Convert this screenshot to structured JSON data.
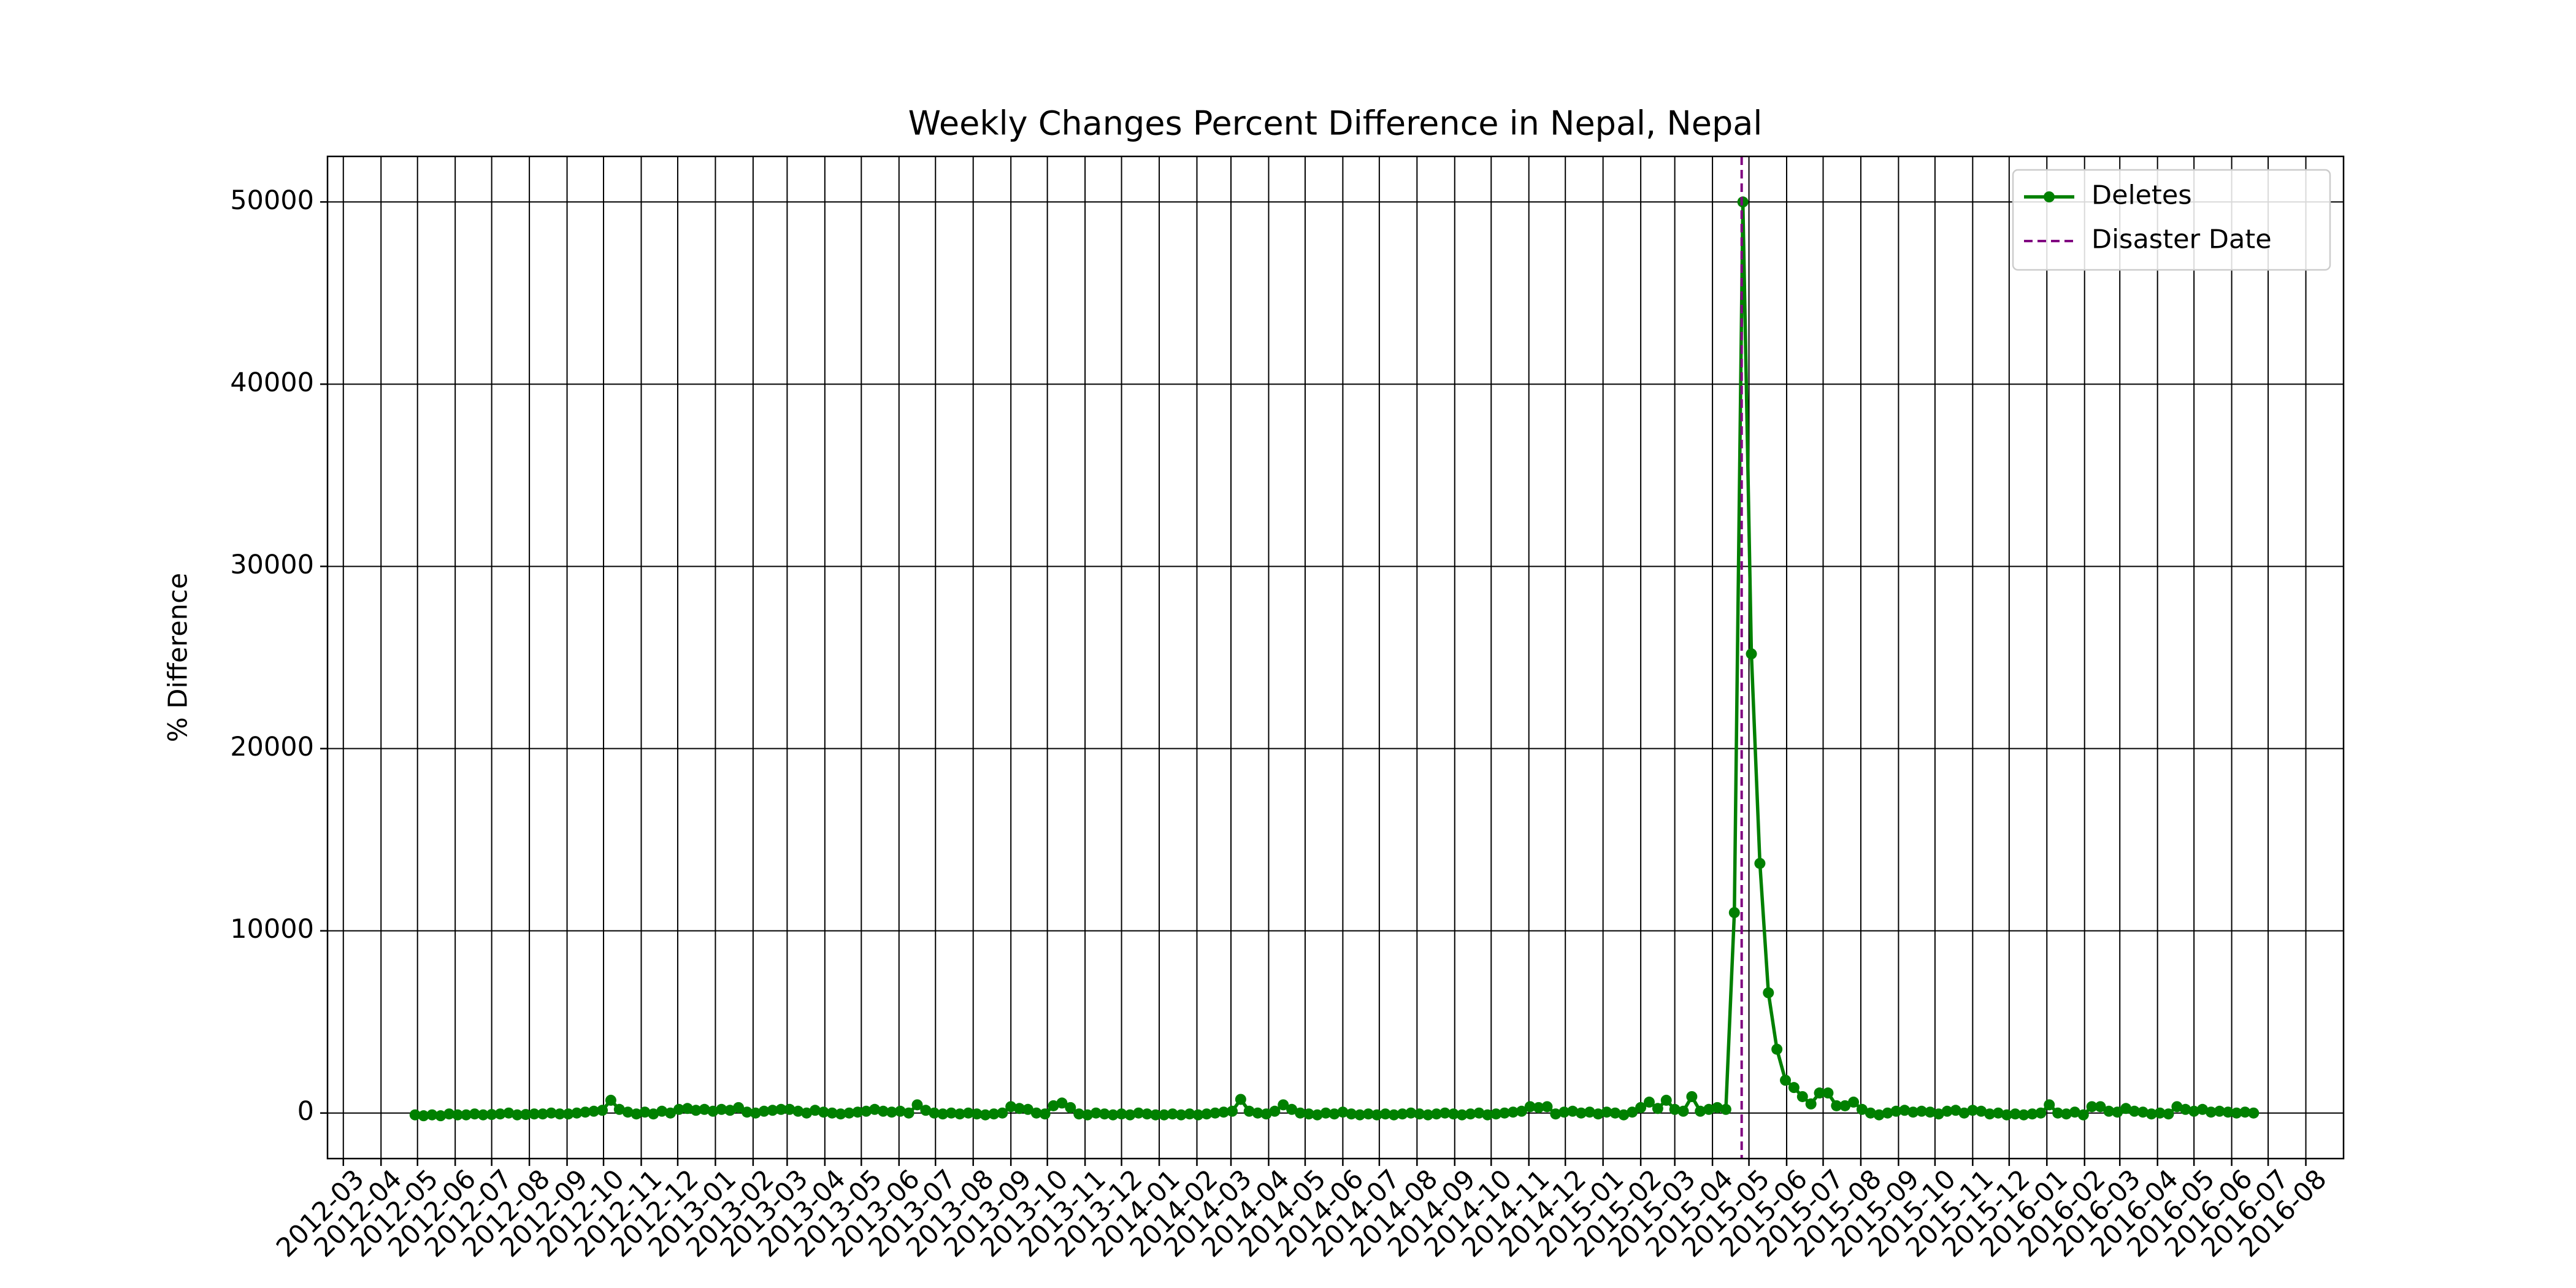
{
  "chart_data": {
    "type": "line",
    "title": "Weekly Changes Percent Difference in Nepal, Nepal",
    "y_label": "% Difference",
    "x": [
      "2012-04-29",
      "2012-05-06",
      "2012-05-13",
      "2012-05-20",
      "2012-05-27",
      "2012-06-03",
      "2012-06-10",
      "2012-06-17",
      "2012-06-24",
      "2012-07-01",
      "2012-07-08",
      "2012-07-15",
      "2012-07-22",
      "2012-07-29",
      "2012-08-05",
      "2012-08-12",
      "2012-08-19",
      "2012-08-26",
      "2012-09-02",
      "2012-09-09",
      "2012-09-16",
      "2012-09-23",
      "2012-09-30",
      "2012-10-07",
      "2012-10-14",
      "2012-10-21",
      "2012-10-28",
      "2012-11-04",
      "2012-11-11",
      "2012-11-18",
      "2012-11-25",
      "2012-12-02",
      "2012-12-09",
      "2012-12-16",
      "2012-12-23",
      "2012-12-30",
      "2013-01-06",
      "2013-01-13",
      "2013-01-20",
      "2013-01-27",
      "2013-02-03",
      "2013-02-10",
      "2013-02-17",
      "2013-02-24",
      "2013-03-03",
      "2013-03-10",
      "2013-03-17",
      "2013-03-24",
      "2013-03-31",
      "2013-04-07",
      "2013-04-14",
      "2013-04-21",
      "2013-04-28",
      "2013-05-05",
      "2013-05-12",
      "2013-05-19",
      "2013-05-26",
      "2013-06-02",
      "2013-06-09",
      "2013-06-16",
      "2013-06-23",
      "2013-06-30",
      "2013-07-07",
      "2013-07-14",
      "2013-07-21",
      "2013-07-28",
      "2013-08-04",
      "2013-08-11",
      "2013-08-18",
      "2013-08-25",
      "2013-09-01",
      "2013-09-08",
      "2013-09-15",
      "2013-09-22",
      "2013-09-29",
      "2013-10-06",
      "2013-10-13",
      "2013-10-20",
      "2013-10-27",
      "2013-11-03",
      "2013-11-10",
      "2013-11-17",
      "2013-11-24",
      "2013-12-01",
      "2013-12-08",
      "2013-12-15",
      "2013-12-22",
      "2013-12-29",
      "2014-01-05",
      "2014-01-12",
      "2014-01-19",
      "2014-01-26",
      "2014-02-02",
      "2014-02-09",
      "2014-02-16",
      "2014-02-23",
      "2014-03-02",
      "2014-03-09",
      "2014-03-16",
      "2014-03-23",
      "2014-03-30",
      "2014-04-06",
      "2014-04-13",
      "2014-04-20",
      "2014-04-27",
      "2014-05-04",
      "2014-05-11",
      "2014-05-18",
      "2014-05-25",
      "2014-06-01",
      "2014-06-08",
      "2014-06-15",
      "2014-06-22",
      "2014-06-29",
      "2014-07-06",
      "2014-07-13",
      "2014-07-20",
      "2014-07-27",
      "2014-08-03",
      "2014-08-10",
      "2014-08-17",
      "2014-08-24",
      "2014-08-31",
      "2014-09-07",
      "2014-09-14",
      "2014-09-21",
      "2014-09-28",
      "2014-10-05",
      "2014-10-12",
      "2014-10-19",
      "2014-10-26",
      "2014-11-02",
      "2014-11-09",
      "2014-11-16",
      "2014-11-23",
      "2014-11-30",
      "2014-12-07",
      "2014-12-14",
      "2014-12-21",
      "2014-12-28",
      "2015-01-04",
      "2015-01-11",
      "2015-01-18",
      "2015-01-25",
      "2015-02-01",
      "2015-02-08",
      "2015-02-15",
      "2015-02-22",
      "2015-03-01",
      "2015-03-08",
      "2015-03-15",
      "2015-03-22",
      "2015-03-29",
      "2015-04-05",
      "2015-04-12",
      "2015-04-19",
      "2015-04-26",
      "2015-05-03",
      "2015-05-10",
      "2015-05-17",
      "2015-05-24",
      "2015-05-31",
      "2015-06-07",
      "2015-06-14",
      "2015-06-21",
      "2015-06-28",
      "2015-07-05",
      "2015-07-12",
      "2015-07-19",
      "2015-07-26",
      "2015-08-02",
      "2015-08-09",
      "2015-08-16",
      "2015-08-23",
      "2015-08-30",
      "2015-09-06",
      "2015-09-13",
      "2015-09-20",
      "2015-09-27",
      "2015-10-04",
      "2015-10-11",
      "2015-10-18",
      "2015-10-25",
      "2015-11-01",
      "2015-11-08",
      "2015-11-15",
      "2015-11-22",
      "2015-11-29",
      "2015-12-06",
      "2015-12-13",
      "2015-12-20",
      "2015-12-27",
      "2016-01-03",
      "2016-01-10",
      "2016-01-17",
      "2016-01-24",
      "2016-01-31",
      "2016-02-07",
      "2016-02-14",
      "2016-02-21",
      "2016-02-28",
      "2016-03-06",
      "2016-03-13",
      "2016-03-20",
      "2016-03-27",
      "2016-04-03",
      "2016-04-10",
      "2016-04-17",
      "2016-04-24",
      "2016-05-01",
      "2016-05-08",
      "2016-05-15",
      "2016-05-22",
      "2016-05-29",
      "2016-06-05",
      "2016-06-12",
      "2016-06-19"
    ],
    "series": [
      {
        "name": "Deletes",
        "color": "#008000",
        "values": [
          -100,
          -150,
          -100,
          -150,
          -50,
          -100,
          -100,
          -50,
          -100,
          -80,
          -50,
          0,
          -100,
          -80,
          -50,
          -50,
          0,
          -50,
          -50,
          0,
          50,
          100,
          150,
          700,
          200,
          50,
          -50,
          50,
          -50,
          100,
          0,
          200,
          250,
          150,
          200,
          100,
          200,
          150,
          300,
          50,
          0,
          100,
          150,
          200,
          200,
          100,
          0,
          150,
          50,
          0,
          -50,
          0,
          50,
          100,
          200,
          100,
          50,
          100,
          0,
          450,
          150,
          0,
          -50,
          0,
          -50,
          0,
          -50,
          -100,
          -50,
          0,
          350,
          250,
          200,
          0,
          -50,
          400,
          550,
          300,
          -50,
          -100,
          0,
          -50,
          -100,
          -50,
          -100,
          0,
          -50,
          -100,
          -100,
          -50,
          -100,
          -50,
          -100,
          -50,
          0,
          50,
          100,
          750,
          100,
          0,
          -50,
          100,
          450,
          200,
          0,
          -50,
          -100,
          0,
          -50,
          50,
          -50,
          -100,
          -50,
          -100,
          -50,
          -100,
          -50,
          0,
          -50,
          -100,
          -50,
          0,
          -50,
          -100,
          -50,
          0,
          -100,
          -50,
          0,
          50,
          100,
          350,
          300,
          350,
          -50,
          50,
          100,
          0,
          50,
          -50,
          50,
          0,
          -100,
          50,
          300,
          600,
          250,
          700,
          200,
          100,
          900,
          100,
          200,
          300,
          200,
          11000,
          50000,
          25200,
          13700,
          6600,
          3500,
          1800,
          1400,
          900,
          500,
          1100,
          1100,
          400,
          400,
          600,
          200,
          0,
          -100,
          0,
          100,
          150,
          50,
          100,
          50,
          -50,
          100,
          150,
          0,
          150,
          100,
          -50,
          0,
          -100,
          -50,
          -100,
          -50,
          0,
          450,
          0,
          -50,
          50,
          -100,
          350,
          350,
          100,
          50,
          250,
          100,
          50,
          -50,
          0,
          -50,
          350,
          200,
          100,
          200,
          50,
          100,
          50,
          0,
          50,
          0
        ]
      }
    ],
    "disaster": {
      "label": "Disaster Date",
      "date": "2015-04-25",
      "color": "#800080"
    },
    "xlim": [
      "2012-02-17",
      "2016-09-01"
    ],
    "xticks": [
      "2012-03",
      "2012-04",
      "2012-05",
      "2012-06",
      "2012-07",
      "2012-08",
      "2012-09",
      "2012-10",
      "2012-11",
      "2012-12",
      "2013-01",
      "2013-02",
      "2013-03",
      "2013-04",
      "2013-05",
      "2013-06",
      "2013-07",
      "2013-08",
      "2013-09",
      "2013-10",
      "2013-11",
      "2013-12",
      "2014-01",
      "2014-02",
      "2014-03",
      "2014-04",
      "2014-05",
      "2014-06",
      "2014-07",
      "2014-08",
      "2014-09",
      "2014-10",
      "2014-11",
      "2014-12",
      "2015-01",
      "2015-02",
      "2015-03",
      "2015-04",
      "2015-05",
      "2015-06",
      "2015-07",
      "2015-08",
      "2015-09",
      "2015-10",
      "2015-11",
      "2015-12",
      "2016-01",
      "2016-02",
      "2016-03",
      "2016-04",
      "2016-05",
      "2016-06",
      "2016-07",
      "2016-08"
    ],
    "ylim": [
      -2500,
      52500
    ],
    "yticks": [
      0,
      10000,
      20000,
      30000,
      40000,
      50000
    ],
    "grid": true,
    "legend": "upper right"
  }
}
